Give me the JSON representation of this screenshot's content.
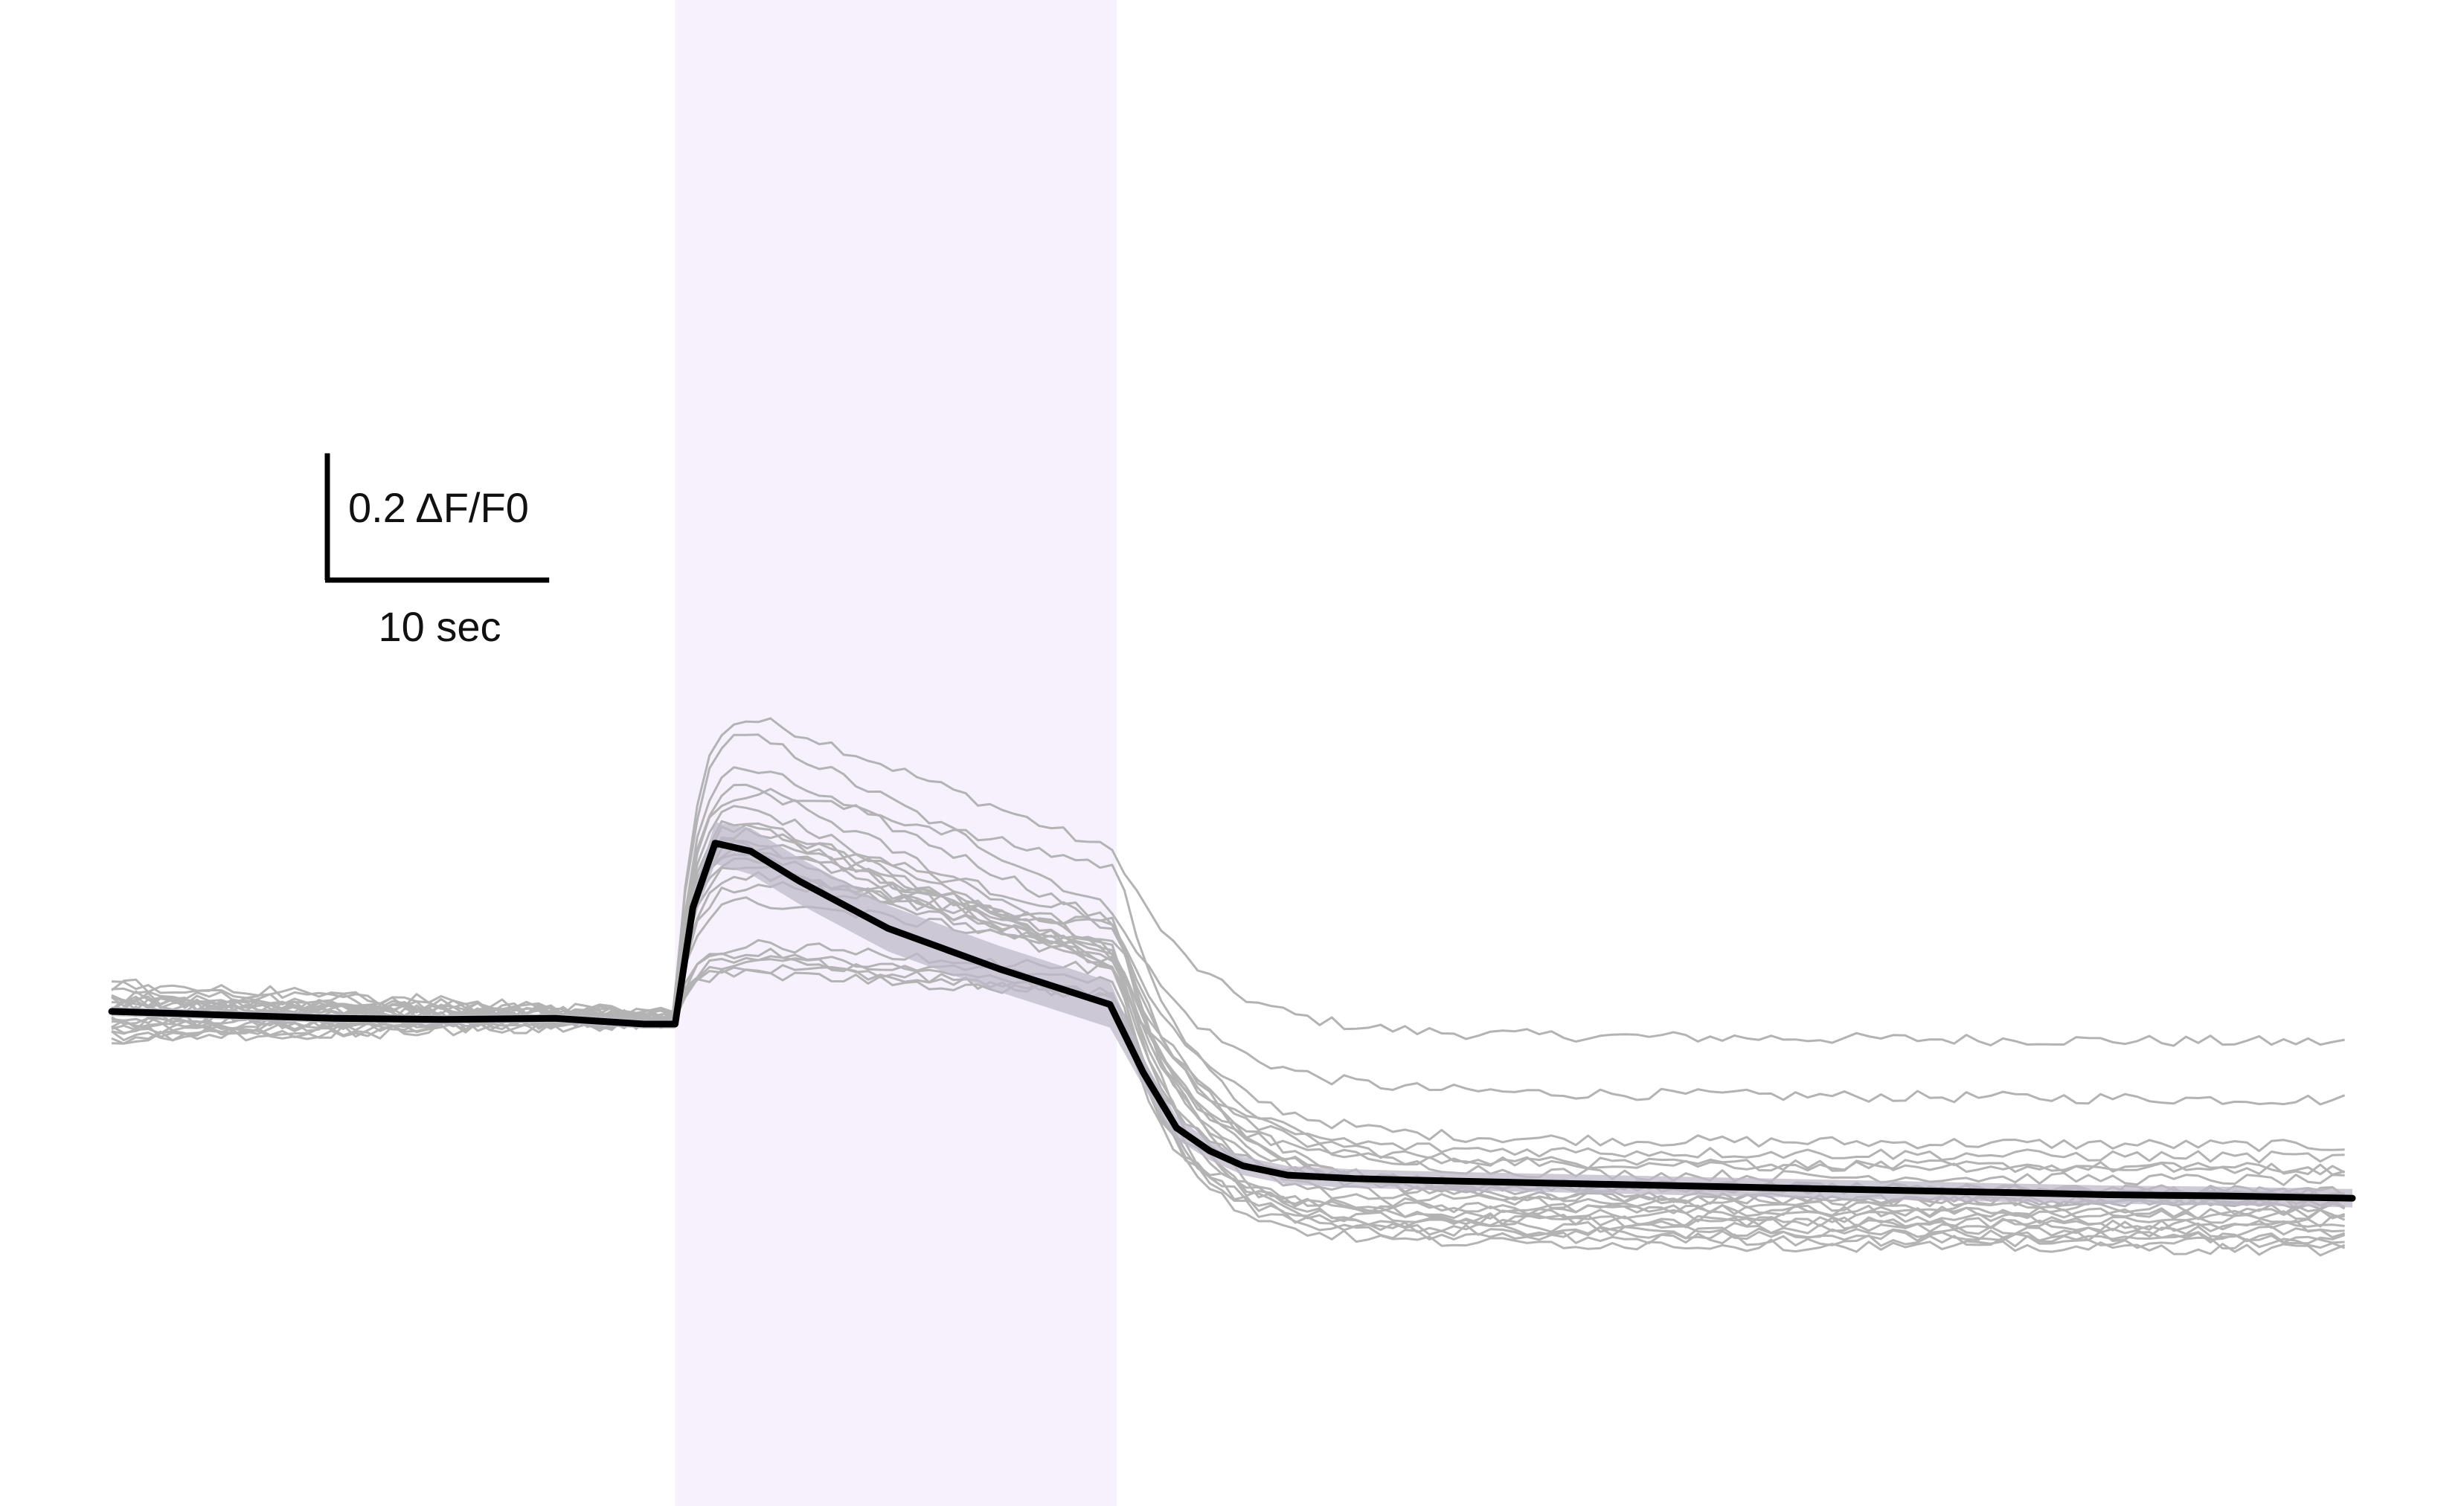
{
  "chart_data": {
    "type": "line",
    "title": "",
    "xlabel": "",
    "ylabel": "",
    "x_unit": "sec",
    "y_unit": "ΔF/F0",
    "xlim": [
      0,
      101
    ],
    "ylim": [
      -0.2,
      0.38
    ],
    "grid": false,
    "legend": "none",
    "stimulus_window": [
      25.4,
      45.3
    ],
    "colors": {
      "individual_trace": "#b3b3b3",
      "mean_trace": "#000000",
      "sem_band": "#bdbac8",
      "stimulus_shade": "#f6f1fd"
    },
    "scale_bar": {
      "y_value": 0.2,
      "y_label": "0.2 ΔF/F0",
      "x_value": 10,
      "x_label": "10 sec"
    },
    "mean_trace": {
      "x": [
        0,
        5,
        10,
        15,
        20,
        24,
        25.4,
        26.2,
        27.2,
        28.8,
        31,
        35,
        40,
        45,
        46.5,
        48,
        49.5,
        51,
        53,
        56,
        60,
        65,
        70,
        75,
        80,
        85,
        90,
        95,
        101
      ],
      "y": [
        0,
        -0.003,
        -0.006,
        -0.007,
        -0.006,
        -0.011,
        -0.011,
        0.09,
        0.146,
        0.139,
        0.113,
        0.072,
        0.037,
        0.006,
        -0.053,
        -0.101,
        -0.121,
        -0.134,
        -0.142,
        -0.145,
        -0.147,
        -0.149,
        -0.151,
        -0.153,
        -0.155,
        -0.157,
        -0.159,
        -0.16,
        -0.162
      ],
      "sem": [
        0.004,
        0.004,
        0.004,
        0.004,
        0.004,
        0.004,
        0.004,
        0.012,
        0.018,
        0.02,
        0.02,
        0.02,
        0.02,
        0.02,
        0.012,
        0.01,
        0.008,
        0.008,
        0.008,
        0.008,
        0.008,
        0.008,
        0.008,
        0.008,
        0.008,
        0.008,
        0.008,
        0.008,
        0.008
      ]
    },
    "individual_traces": [
      {
        "peak": 0.268,
        "post": -0.02
      },
      {
        "peak": 0.255,
        "post": -0.07
      },
      {
        "peak": 0.225,
        "post": -0.11
      },
      {
        "peak": 0.208,
        "post": -0.13
      },
      {
        "peak": 0.2,
        "post": -0.13
      },
      {
        "peak": 0.19,
        "post": -0.15
      },
      {
        "peak": 0.178,
        "post": -0.14
      },
      {
        "peak": 0.172,
        "post": -0.16
      },
      {
        "peak": 0.165,
        "post": -0.15
      },
      {
        "peak": 0.16,
        "post": -0.165
      },
      {
        "peak": 0.155,
        "post": -0.12
      },
      {
        "peak": 0.15,
        "post": -0.16
      },
      {
        "peak": 0.145,
        "post": -0.17
      },
      {
        "peak": 0.14,
        "post": -0.175
      },
      {
        "peak": 0.135,
        "post": -0.18
      },
      {
        "peak": 0.125,
        "post": -0.16
      },
      {
        "peak": 0.115,
        "post": -0.17
      },
      {
        "peak": 0.1,
        "post": -0.185
      },
      {
        "peak": 0.06,
        "post": -0.19
      },
      {
        "peak": 0.055,
        "post": -0.195
      },
      {
        "peak": 0.05,
        "post": -0.2
      },
      {
        "peak": 0.045,
        "post": -0.18
      },
      {
        "peak": 0.04,
        "post": -0.19
      },
      {
        "peak": 0.035,
        "post": -0.15
      }
    ]
  }
}
